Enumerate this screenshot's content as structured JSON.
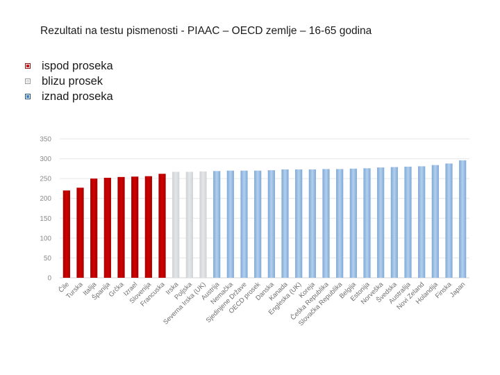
{
  "title": "Rezultati na testu pismenosti - PIAAC – OECD zemlje – 16-65 godina",
  "legend": [
    {
      "label": "ispod proseka",
      "color": "#c00000",
      "icon": "square-bullet-icon"
    },
    {
      "label": "blizu prosek",
      "color": "#d9d9d9",
      "icon": "square-bullet-icon"
    },
    {
      "label": "iznad proseka",
      "color": "#2e75b6",
      "icon": "square-bullet-icon"
    }
  ],
  "chart_data": {
    "type": "bar",
    "title": "",
    "xlabel": "",
    "ylabel": "",
    "ylim": [
      0,
      350
    ],
    "yticks": [
      0,
      50,
      100,
      150,
      200,
      250,
      300,
      350
    ],
    "grid": true,
    "categories": [
      "Čile",
      "Turska",
      "Italija",
      "Španija",
      "Grčka",
      "Izrael",
      "Slovenija",
      "Francuska",
      "Irska",
      "Poljska",
      "Severna Irska (UK)",
      "Austrija",
      "Nemačka",
      "Sjedinjene Države",
      "OECD prosek",
      "Danska",
      "Kanada",
      "Engleska (UK)",
      "Koreja",
      "Češka Republika",
      "Slovačka Republika",
      "Belgija",
      "Estonija",
      "Norveška",
      "Švedska",
      "Australija",
      "Novi Zeland",
      "Holandija",
      "Finska",
      "Japan"
    ],
    "values": [
      220,
      227,
      250,
      252,
      254,
      255,
      256,
      262,
      267,
      267,
      268,
      269,
      270,
      270,
      270,
      271,
      273,
      273,
      273,
      274,
      274,
      275,
      276,
      278,
      279,
      280,
      281,
      284,
      288,
      296
    ],
    "groups": [
      "below",
      "below",
      "below",
      "below",
      "below",
      "below",
      "below",
      "below",
      "near",
      "near",
      "near",
      "above",
      "above",
      "above",
      "above",
      "above",
      "above",
      "above",
      "above",
      "above",
      "above",
      "above",
      "above",
      "above",
      "above",
      "above",
      "above",
      "above",
      "above",
      "above"
    ],
    "group_colors": {
      "below": "#c00000",
      "near": "#d9d9d9",
      "above": "#9dc3e6"
    },
    "grid_color": "#e6e6e6"
  }
}
